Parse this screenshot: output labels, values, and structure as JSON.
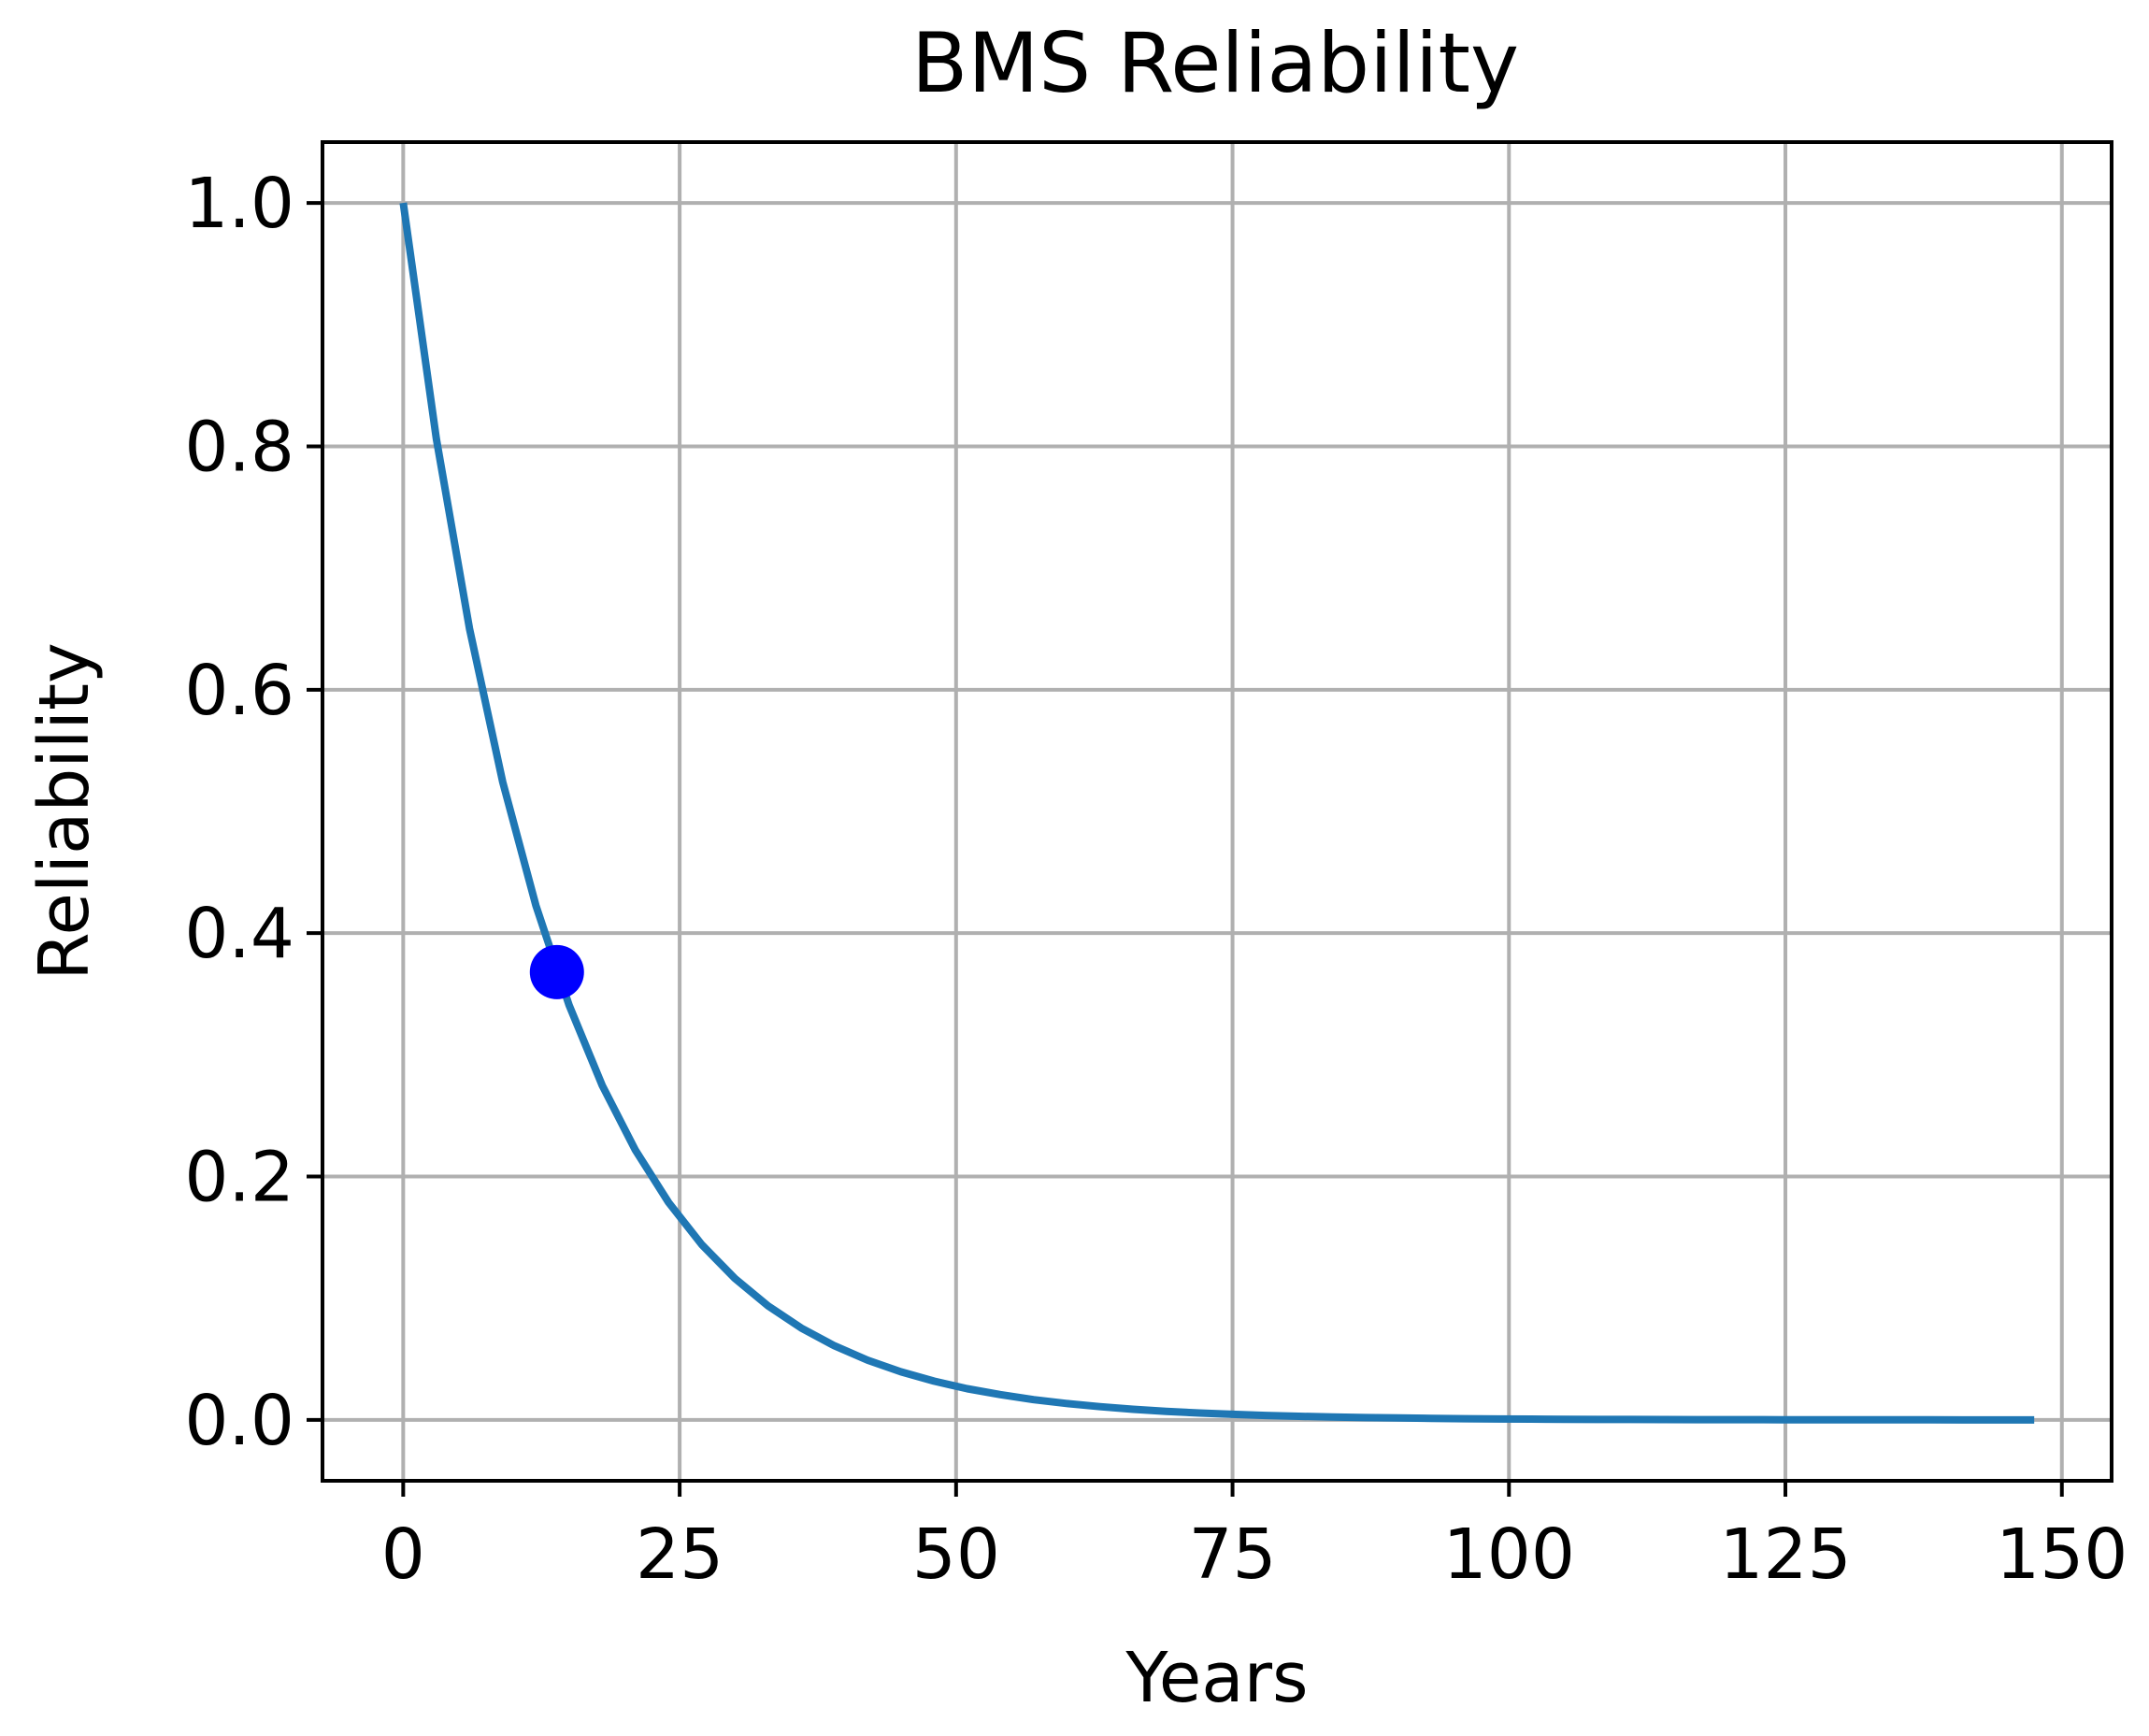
{
  "chart_data": {
    "type": "line",
    "title": "BMS Reliability",
    "xlabel": "Years",
    "ylabel": "Reliability",
    "xlim": [
      -7.3,
      154.5
    ],
    "ylim": [
      -0.05,
      1.05
    ],
    "x_ticks": [
      0,
      25,
      50,
      75,
      100,
      125,
      150
    ],
    "x_tick_labels": [
      "0",
      "25",
      "50",
      "75",
      "100",
      "125",
      "150"
    ],
    "y_ticks": [
      0.0,
      0.2,
      0.4,
      0.6,
      0.8,
      1.0
    ],
    "y_tick_labels": [
      "0.0",
      "0.2",
      "0.4",
      "0.6",
      "0.8",
      "1.0"
    ],
    "grid": true,
    "line_color": "#1f77b4",
    "highlight_color": "#0000ff",
    "series": [
      {
        "x": [
          0,
          3,
          6,
          9,
          12,
          15,
          18,
          21,
          24,
          27,
          30,
          33,
          36,
          39,
          42,
          45,
          48,
          51,
          54,
          57,
          60,
          63,
          66,
          69,
          72,
          75,
          78,
          81,
          84,
          87,
          90,
          93,
          96,
          99,
          102,
          105,
          108,
          111,
          114,
          117,
          120,
          123,
          126,
          129,
          132,
          135,
          138,
          141,
          144,
          147.5
        ],
        "y": [
          1.0,
          0.8063,
          0.6501,
          0.5242,
          0.4227,
          0.3408,
          0.2748,
          0.2216,
          0.1787,
          0.1441,
          0.1162,
          0.0937,
          0.0755,
          0.0609,
          0.0491,
          0.0396,
          0.0319,
          0.0257,
          0.0208,
          0.0167,
          0.0135,
          0.0109,
          0.0088,
          0.0071,
          0.0057,
          0.0046,
          0.0037,
          0.003,
          0.0024,
          0.0019,
          0.0016,
          0.0013,
          0.001,
          0.0008,
          0.0007,
          0.0005,
          0.0004,
          0.0004,
          0.0003,
          0.0002,
          0.0002,
          0.0002,
          0.0001,
          0.0001,
          0.0001,
          0.0001,
          0.0001,
          0.0,
          0.0,
          0.0
        ]
      }
    ],
    "highlight_point": {
      "x": 13.9,
      "y": 0.368
    }
  }
}
